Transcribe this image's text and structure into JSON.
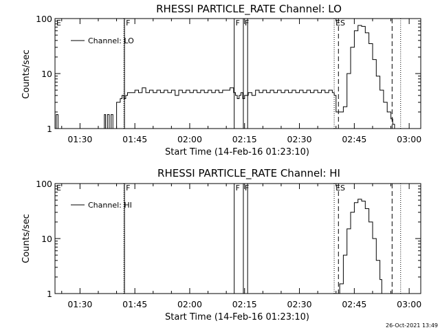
{
  "timestamp": "26-Oct-2021 13:49",
  "chart_data": [
    {
      "type": "line",
      "title": "RHESSI PARTICLE_RATE Channel: LO",
      "xlabel": "Start Time (14-Feb-16 01:23:10)",
      "ylabel": "Counts/sec",
      "yscale": "log",
      "ylim": [
        1,
        100
      ],
      "xlim": [
        "01:23:10",
        "03:03:10"
      ],
      "xticks": [
        "01:30",
        "01:45",
        "02:00",
        "02:15",
        "02:30",
        "02:45",
        "03:00"
      ],
      "yticks": [
        "1",
        "10",
        "100"
      ],
      "legend": "Channel: LO",
      "legend_position": "top-left",
      "series": [
        {
          "name": "Channel: LO",
          "x": [
            "01:23:10",
            "01:23:30",
            "01:23:40",
            "01:24:00",
            "01:24:30",
            "01:25:00",
            "01:25:30",
            "01:36:10",
            "01:36:40",
            "01:37:00",
            "01:37:30",
            "01:38:00",
            "01:38:30",
            "01:39:00",
            "01:39:30",
            "01:40:00",
            "01:40:30",
            "01:41:00",
            "01:41:30",
            "01:42:00",
            "01:42:30",
            "01:43:00",
            "01:44:00",
            "01:45:00",
            "01:46:00",
            "01:47:00",
            "01:48:00",
            "01:49:00",
            "01:50:00",
            "01:51:00",
            "01:52:00",
            "01:53:00",
            "01:54:00",
            "01:55:00",
            "01:56:00",
            "01:57:00",
            "01:58:00",
            "01:59:00",
            "02:00:00",
            "02:01:00",
            "02:02:00",
            "02:03:00",
            "02:04:00",
            "02:05:00",
            "02:06:00",
            "02:07:00",
            "02:08:00",
            "02:09:00",
            "02:10:00",
            "02:11:00",
            "02:12:00",
            "02:12:30",
            "02:13:00",
            "02:13:30",
            "02:14:00",
            "02:14:30",
            "02:15:00",
            "02:16:00",
            "02:17:00",
            "02:18:00",
            "02:19:00",
            "02:20:00",
            "02:21:00",
            "02:22:00",
            "02:23:00",
            "02:24:00",
            "02:25:00",
            "02:26:00",
            "02:27:00",
            "02:28:00",
            "02:29:00",
            "02:30:00",
            "02:31:00",
            "02:32:00",
            "02:33:00",
            "02:34:00",
            "02:35:00",
            "02:36:00",
            "02:37:00",
            "02:38:00",
            "02:39:00",
            "02:39:30",
            "02:40:00",
            "02:41:00",
            "02:42:00",
            "02:43:00",
            "02:44:00",
            "02:45:00",
            "02:46:00",
            "02:47:00",
            "02:48:00",
            "02:49:00",
            "02:50:00",
            "02:51:00",
            "02:52:00",
            "02:53:00",
            "02:54:00",
            "02:55:00",
            "02:55:30",
            "02:56:00"
          ],
          "y": [
            1,
            1.8,
            1.8,
            1,
            1,
            1,
            1,
            1,
            1.8,
            1,
            1.8,
            1,
            1.8,
            1,
            1,
            3,
            3,
            3.5,
            4,
            3.5,
            4,
            4.5,
            4.5,
            5,
            4.5,
            5.5,
            4.5,
            5,
            4.5,
            5,
            4.5,
            5,
            4.5,
            5,
            4,
            5,
            4.5,
            5,
            4.5,
            5,
            4.5,
            5,
            4.5,
            5,
            4.5,
            5,
            4.5,
            5,
            5,
            5.5,
            4.5,
            4,
            3.5,
            4,
            4.5,
            3.5,
            4,
            4.5,
            4,
            5,
            4.5,
            5,
            4.5,
            5,
            4.5,
            5,
            4.5,
            5,
            4.5,
            5,
            4.5,
            5,
            4.5,
            5,
            4.5,
            5,
            4.5,
            5,
            4.5,
            5,
            4.5,
            4,
            2,
            2,
            2.5,
            10,
            30,
            60,
            75,
            72,
            55,
            35,
            18,
            9,
            5,
            3,
            2,
            1.5,
            1.2,
            1
          ]
        }
      ],
      "markers": [
        {
          "label": "E",
          "x": "01:23:10",
          "style": "none"
        },
        {
          "label": "F",
          "x": "01:42:10",
          "style": "solid"
        },
        {
          "label": "F",
          "x": "02:12:10",
          "style": "solid"
        },
        {
          "label": "F",
          "x": "02:14:40",
          "style": "solid"
        },
        {
          "label": "ES",
          "x": "02:39:30",
          "style": "dotted"
        },
        {
          "label": "",
          "x": "02:40:40",
          "style": "dashed"
        },
        {
          "label": "",
          "x": "02:55:20",
          "style": "dashed"
        },
        {
          "label": "",
          "x": "02:57:40",
          "style": "dotted"
        }
      ],
      "markers_extra_lines": [
        {
          "x": "01:42:00",
          "style": "dotted"
        },
        {
          "x": "02:15:50",
          "style": "solid"
        }
      ]
    },
    {
      "type": "line",
      "title": "RHESSI PARTICLE_RATE Channel: HI",
      "xlabel": "Start Time (14-Feb-16 01:23:10)",
      "ylabel": "Counts/sec",
      "yscale": "log",
      "ylim": [
        1,
        100
      ],
      "xlim": [
        "01:23:10",
        "03:03:10"
      ],
      "xticks": [
        "01:30",
        "01:45",
        "02:00",
        "02:15",
        "02:30",
        "02:45",
        "03:00"
      ],
      "yticks": [
        "1",
        "10",
        "100"
      ],
      "legend": "Channel: HI",
      "legend_position": "top-left",
      "series": [
        {
          "name": "Channel: HI",
          "x": [
            "02:40:30",
            "02:41:00",
            "02:42:00",
            "02:43:00",
            "02:44:00",
            "02:45:00",
            "02:46:00",
            "02:47:00",
            "02:48:00",
            "02:49:00",
            "02:50:00",
            "02:51:00",
            "02:52:00",
            "02:52:30"
          ],
          "y": [
            1,
            1.5,
            5,
            15,
            30,
            45,
            52,
            48,
            35,
            20,
            10,
            4,
            1.8,
            1
          ]
        }
      ],
      "markers": [
        {
          "label": "E",
          "x": "01:23:10",
          "style": "none"
        },
        {
          "label": "F",
          "x": "01:42:10",
          "style": "solid"
        },
        {
          "label": "F",
          "x": "02:12:10",
          "style": "solid"
        },
        {
          "label": "F",
          "x": "02:14:40",
          "style": "solid"
        },
        {
          "label": "ES",
          "x": "02:39:30",
          "style": "dotted"
        },
        {
          "label": "",
          "x": "02:40:40",
          "style": "dashed"
        },
        {
          "label": "",
          "x": "02:55:20",
          "style": "dashed"
        },
        {
          "label": "",
          "x": "02:57:40",
          "style": "dotted"
        }
      ],
      "markers_extra_lines": [
        {
          "x": "01:42:00",
          "style": "dotted"
        },
        {
          "x": "02:15:50",
          "style": "solid"
        }
      ]
    }
  ]
}
